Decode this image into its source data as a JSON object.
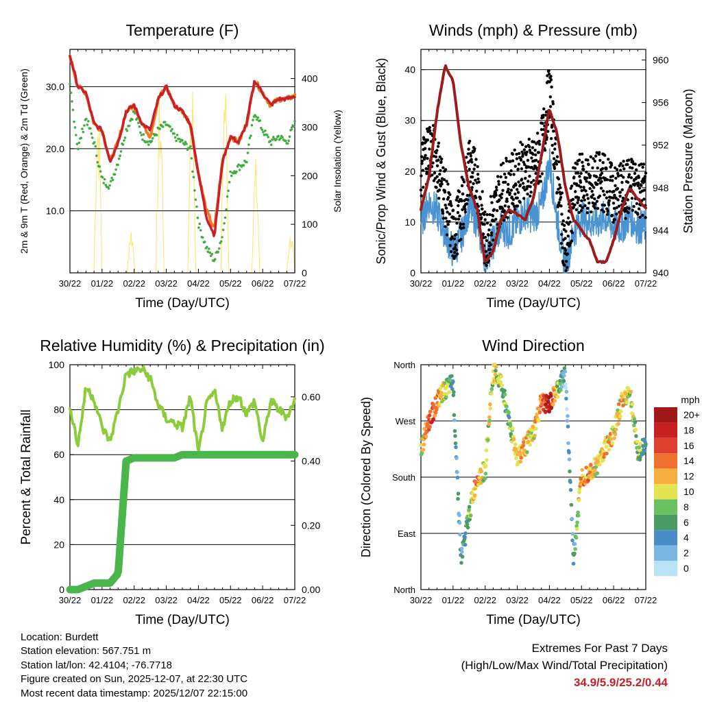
{
  "colors": {
    "temp_2m": "#c8202a",
    "temp_9m": "#f07a20",
    "dewpoint": "#3fae3f",
    "solar": "#ffe36a",
    "wind": "#4a93d2",
    "gust": "#000000",
    "pressure": "#9a1c1c",
    "rh": "#8ccb3c",
    "precip": "#4ab54a",
    "extremes_text": "#c8202a"
  },
  "x_ticks": [
    "30/22",
    "01/22",
    "02/22",
    "03/22",
    "04/22",
    "05/22",
    "06/22",
    "07/22"
  ],
  "x_label": "Time (Day/UTC)",
  "chart_data": [
    {
      "id": "temperature",
      "type": "line",
      "title": "Temperature (F)",
      "xlabel": "Time (Day/UTC)",
      "ylabel": "2m & 9m T (Red, Orange) & 2m Td (Green)",
      "y2label": "Solar Insolation (Yellow)",
      "ylim": [
        0,
        36
      ],
      "y2lim": [
        0,
        460
      ],
      "yticks": [
        "10.0",
        "20.0",
        "30.0"
      ],
      "y2ticks": [
        "0",
        "100",
        "200",
        "300",
        "400"
      ],
      "x": [
        0,
        0.25,
        0.5,
        0.75,
        1,
        1.25,
        1.5,
        1.75,
        2,
        2.25,
        2.5,
        2.75,
        3,
        3.25,
        3.5,
        3.75,
        4,
        4.25,
        4.5,
        4.75,
        5,
        5.25,
        5.5,
        5.75,
        6,
        6.25,
        6.5,
        6.75,
        7
      ],
      "series": [
        {
          "name": "2m T",
          "values": [
            35,
            30,
            29,
            24,
            23,
            18,
            21,
            26,
            27,
            24,
            23,
            28,
            30,
            27,
            26,
            24,
            16,
            9,
            6,
            18,
            22,
            21,
            24,
            31,
            29,
            27,
            28,
            28,
            28.5
          ]
        },
        {
          "name": "9m T",
          "values": [
            35,
            30,
            29,
            24,
            23,
            18,
            21,
            26,
            27,
            24,
            22,
            28,
            30,
            27,
            26,
            24,
            16,
            10,
            7,
            18,
            22,
            21,
            24,
            31,
            29,
            27,
            28,
            28,
            28.5
          ]
        },
        {
          "name": "2m Td",
          "values": [
            30,
            20,
            25,
            21,
            15,
            14,
            18,
            23,
            26,
            22,
            21,
            23,
            24,
            22,
            21,
            20,
            8,
            4,
            2,
            6,
            16,
            17,
            18,
            26,
            23,
            21,
            22,
            21,
            24
          ]
        },
        {
          "name": "Solar Insolation",
          "values": [
            0,
            0,
            0,
            420,
            0,
            0,
            0,
            100,
            0,
            0,
            0,
            420,
            0,
            0,
            0,
            440,
            0,
            0,
            0,
            440,
            0,
            0,
            0,
            240,
            0,
            0,
            0,
            0,
            80
          ]
        }
      ]
    },
    {
      "id": "winds",
      "type": "scatter",
      "title": "Winds (mph) & Pressure (mb)",
      "xlabel": "Time (Day/UTC)",
      "ylabel": "Sonic/Prop Wind & Gust (Blue, Black)",
      "y2label": "Station Pressure (Maroon)",
      "ylim": [
        0,
        44
      ],
      "y2lim": [
        940,
        961
      ],
      "yticks": [
        "0",
        "10",
        "20",
        "30",
        "40"
      ],
      "y2ticks": [
        "940",
        "944",
        "948",
        "952",
        "956",
        "960"
      ],
      "x": [
        0,
        0.25,
        0.5,
        0.75,
        1,
        1.25,
        1.5,
        1.75,
        2,
        2.25,
        2.5,
        2.75,
        3,
        3.25,
        3.5,
        3.75,
        4,
        4.25,
        4.5,
        4.75,
        5,
        5.25,
        5.5,
        5.75,
        6,
        6.25,
        6.5,
        6.75,
        7
      ],
      "series": [
        {
          "name": "Wind",
          "values": [
            10,
            14,
            12,
            8,
            4,
            7,
            13,
            10,
            3,
            6,
            9,
            8,
            10,
            12,
            11,
            13,
            22,
            10,
            1,
            8,
            11,
            10,
            10,
            11,
            9,
            9,
            11,
            9,
            9
          ]
        },
        {
          "name": "Gust",
          "values": [
            20,
            25,
            22,
            15,
            7,
            12,
            21,
            18,
            6,
            11,
            16,
            17,
            19,
            21,
            20,
            24,
            36,
            19,
            3,
            15,
            18,
            17,
            18,
            18,
            15,
            16,
            17,
            17,
            16
          ]
        },
        {
          "name": "Station Pressure",
          "values": [
            946,
            949,
            955,
            959.5,
            958,
            952,
            948,
            946,
            941,
            942,
            945,
            946,
            945.5,
            945,
            947,
            951,
            955.5,
            953,
            948,
            945,
            944,
            943,
            941,
            941,
            943,
            946,
            948,
            947,
            946
          ]
        }
      ],
      "gust_max": 41
    },
    {
      "id": "humidity",
      "type": "line",
      "title": "Relative Humidity (%) & Precipitation (in)",
      "xlabel": "Time (Day/UTC)",
      "ylabel": "Percent & Total Rainfall",
      "ylim": [
        0,
        100
      ],
      "y2lim": [
        0,
        0.7
      ],
      "yticks": [
        "0",
        "20",
        "40",
        "60",
        "80",
        "100"
      ],
      "y2ticks": [
        "0.00",
        "0.20",
        "0.40",
        "0.60"
      ],
      "x": [
        0,
        0.25,
        0.5,
        0.75,
        1,
        1.25,
        1.5,
        1.75,
        2,
        2.25,
        2.5,
        2.75,
        3,
        3.25,
        3.5,
        3.75,
        4,
        4.25,
        4.5,
        4.75,
        5,
        5.25,
        5.5,
        5.75,
        6,
        6.25,
        6.5,
        6.75,
        7
      ],
      "series": [
        {
          "name": "RH",
          "values": [
            82,
            64,
            90,
            85,
            72,
            66,
            80,
            96,
            97,
            98,
            94,
            82,
            76,
            74,
            72,
            86,
            60,
            82,
            88,
            72,
            84,
            86,
            78,
            84,
            65,
            84,
            80,
            77,
            84
          ]
        },
        {
          "name": "Total Precipitation",
          "values": [
            0,
            0,
            0.01,
            0.02,
            0.02,
            0.02,
            0.05,
            0.4,
            0.41,
            0.41,
            0.41,
            0.41,
            0.41,
            0.41,
            0.42,
            0.42,
            0.42,
            0.42,
            0.42,
            0.42,
            0.42,
            0.42,
            0.42,
            0.42,
            0.42,
            0.42,
            0.42,
            0.42,
            0.42
          ]
        }
      ]
    },
    {
      "id": "direction",
      "type": "scatter",
      "title": "Wind Direction",
      "xlabel": "Time (Day/UTC)",
      "ylabel": "Direction (Colored By Speed)",
      "ylim": [
        0,
        360
      ],
      "yticks": [
        "North",
        "East",
        "South",
        "West",
        "North"
      ],
      "x": [
        0,
        0.25,
        0.5,
        0.75,
        1,
        1.25,
        1.5,
        1.75,
        2,
        2.25,
        2.5,
        2.75,
        3,
        3.25,
        3.5,
        3.75,
        4,
        4.25,
        4.5,
        4.75,
        5,
        5.25,
        5.5,
        5.75,
        6,
        6.25,
        6.5,
        6.75,
        7
      ],
      "series": [
        {
          "name": "Direction (deg)",
          "values": [
            225,
            270,
            300,
            320,
            330,
            50,
            120,
            180,
            190,
            350,
            330,
            270,
            210,
            230,
            250,
            300,
            295,
            320,
            345,
            50,
            180,
            190,
            200,
            230,
            250,
            300,
            320,
            220,
            230
          ]
        },
        {
          "name": "Speed (mph)",
          "values": [
            10,
            16,
            14,
            10,
            4,
            4,
            8,
            14,
            8,
            10,
            8,
            6,
            12,
            12,
            10,
            14,
            20,
            8,
            2,
            4,
            14,
            12,
            10,
            12,
            10,
            12,
            10,
            8,
            6
          ]
        }
      ],
      "colorbar": {
        "title": "mph",
        "labels": [
          "0",
          "2",
          "4",
          "6",
          "8",
          "10",
          "12",
          "14",
          "16",
          "18",
          "20+"
        ],
        "colors": [
          "#b8e4f6",
          "#7ab8e3",
          "#4a8cc4",
          "#4a9b64",
          "#6bc060",
          "#e4e450",
          "#f7b040",
          "#f07030",
          "#e04030",
          "#c82020",
          "#a01818"
        ]
      }
    }
  ],
  "info": {
    "location": "Location: Burdett",
    "elevation": "Station elevation: 567.751 m",
    "latlon": "Station lat/lon: 42.4104; -76.7718",
    "created": "Figure created on Sun, 2025-12-07, at 22:30 UTC",
    "recent": "Most recent data timestamp: 2025/12/07 22:15:00"
  },
  "extremes": {
    "title": "Extremes For Past 7 Days",
    "subtitle": "(High/Low/Max Wind/Total Precipitation)",
    "values": "34.9/5.9/25.2/0.44"
  }
}
